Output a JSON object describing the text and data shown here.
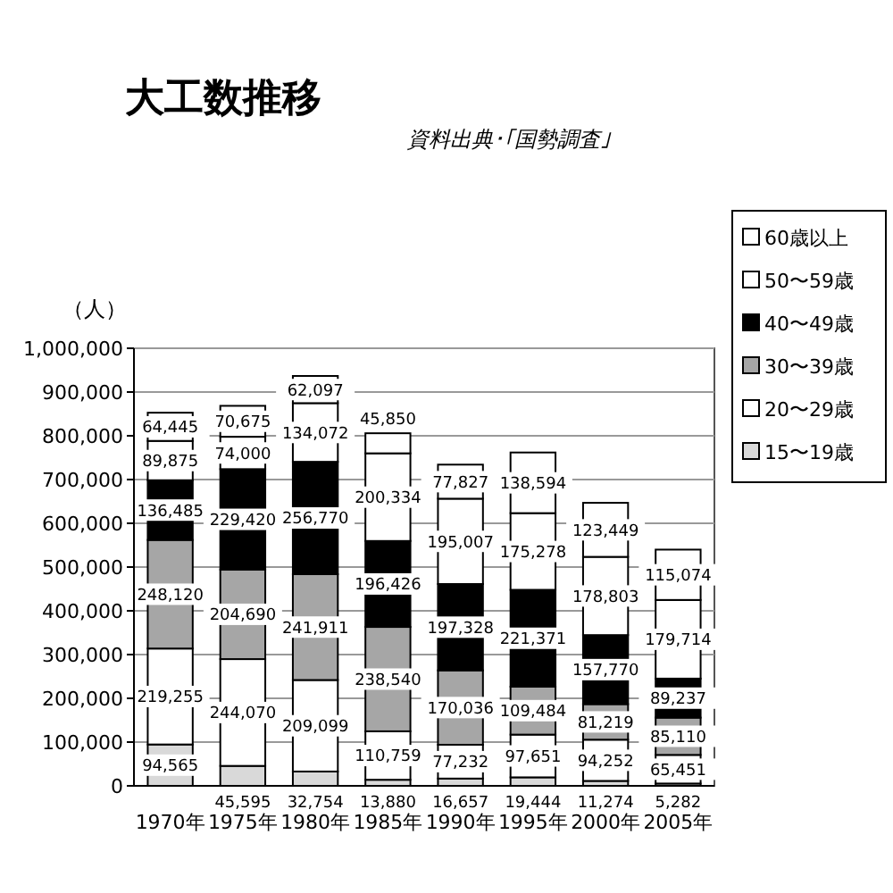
{
  "chart_data": {
    "type": "bar",
    "stacked": true,
    "title": "大工数推移",
    "annotations": [
      "資料出典･｢国勢調査｣"
    ],
    "ylabel": "（人）",
    "categories": [
      "1970年",
      "1975年",
      "1980年",
      "1985年",
      "1990年",
      "1995年",
      "2000年",
      "2005年"
    ],
    "series": [
      {
        "name": "15〜19歳",
        "color": "#d9d9d9",
        "values": [
          94565,
          45595,
          32754,
          13880,
          16657,
          19444,
          11274,
          5282
        ],
        "value_labels": [
          "94,565",
          "45,595",
          "32,754",
          "13,880",
          "16,657",
          "19,444",
          "11,274",
          "5,282"
        ]
      },
      {
        "name": "20〜29歳",
        "color": "#ffffff",
        "values": [
          219255,
          244070,
          209099,
          110759,
          77232,
          97651,
          94252,
          65451
        ],
        "value_labels": [
          "219,255",
          "244,070",
          "209,099",
          "110,759",
          "77,232",
          "97,651",
          "94,252",
          "65,451"
        ]
      },
      {
        "name": "30〜39歳",
        "color": "#a6a6a6",
        "values": [
          248120,
          204690,
          241911,
          238540,
          170036,
          109484,
          81219,
          85110
        ],
        "value_labels": [
          "248,120",
          "204,690",
          "241,911",
          "238,540",
          "170,036",
          "109,484",
          "81,219",
          "85,110"
        ]
      },
      {
        "name": "40〜49歳",
        "color": "#000000",
        "values": [
          136485,
          229420,
          256770,
          196426,
          197328,
          221371,
          157770,
          89237
        ],
        "value_labels": [
          "136,485",
          "229,420",
          "256,770",
          "196,426",
          "197,328",
          "221,371",
          "157,770",
          "89,237"
        ]
      },
      {
        "name": "50〜59歳",
        "color": "#ffffff",
        "values": [
          89875,
          74000,
          134072,
          200334,
          195007,
          175278,
          178803,
          179714
        ],
        "value_labels": [
          "89,875",
          "74,000",
          "134,072",
          "200,334",
          "195,007",
          "175,278",
          "178,803",
          "179,714"
        ]
      },
      {
        "name": "60歳以上",
        "color": "#ffffff",
        "values": [
          64445,
          70675,
          62097,
          45850,
          77827,
          138594,
          123449,
          115074
        ],
        "value_labels": [
          "64,445",
          "70,675",
          "62,097",
          "45,850",
          "77,827",
          "138,594",
          "123,449",
          "115,074"
        ]
      }
    ],
    "ylim": [
      0,
      1000000
    ],
    "yticks": [
      {
        "value": 0,
        "label": "0"
      },
      {
        "value": 100000,
        "label": "100,000"
      },
      {
        "value": 200000,
        "label": "200,000"
      },
      {
        "value": 300000,
        "label": "300,000"
      },
      {
        "value": 400000,
        "label": "400,000"
      },
      {
        "value": 500000,
        "label": "500,000"
      },
      {
        "value": 600000,
        "label": "600,000"
      },
      {
        "value": 700000,
        "label": "700,000"
      },
      {
        "value": 800000,
        "label": "800,000"
      },
      {
        "value": 900000,
        "label": "900,000"
      },
      {
        "value": 1000000,
        "label": "1,000,000"
      }
    ],
    "grid": "y",
    "legend": "top right"
  }
}
